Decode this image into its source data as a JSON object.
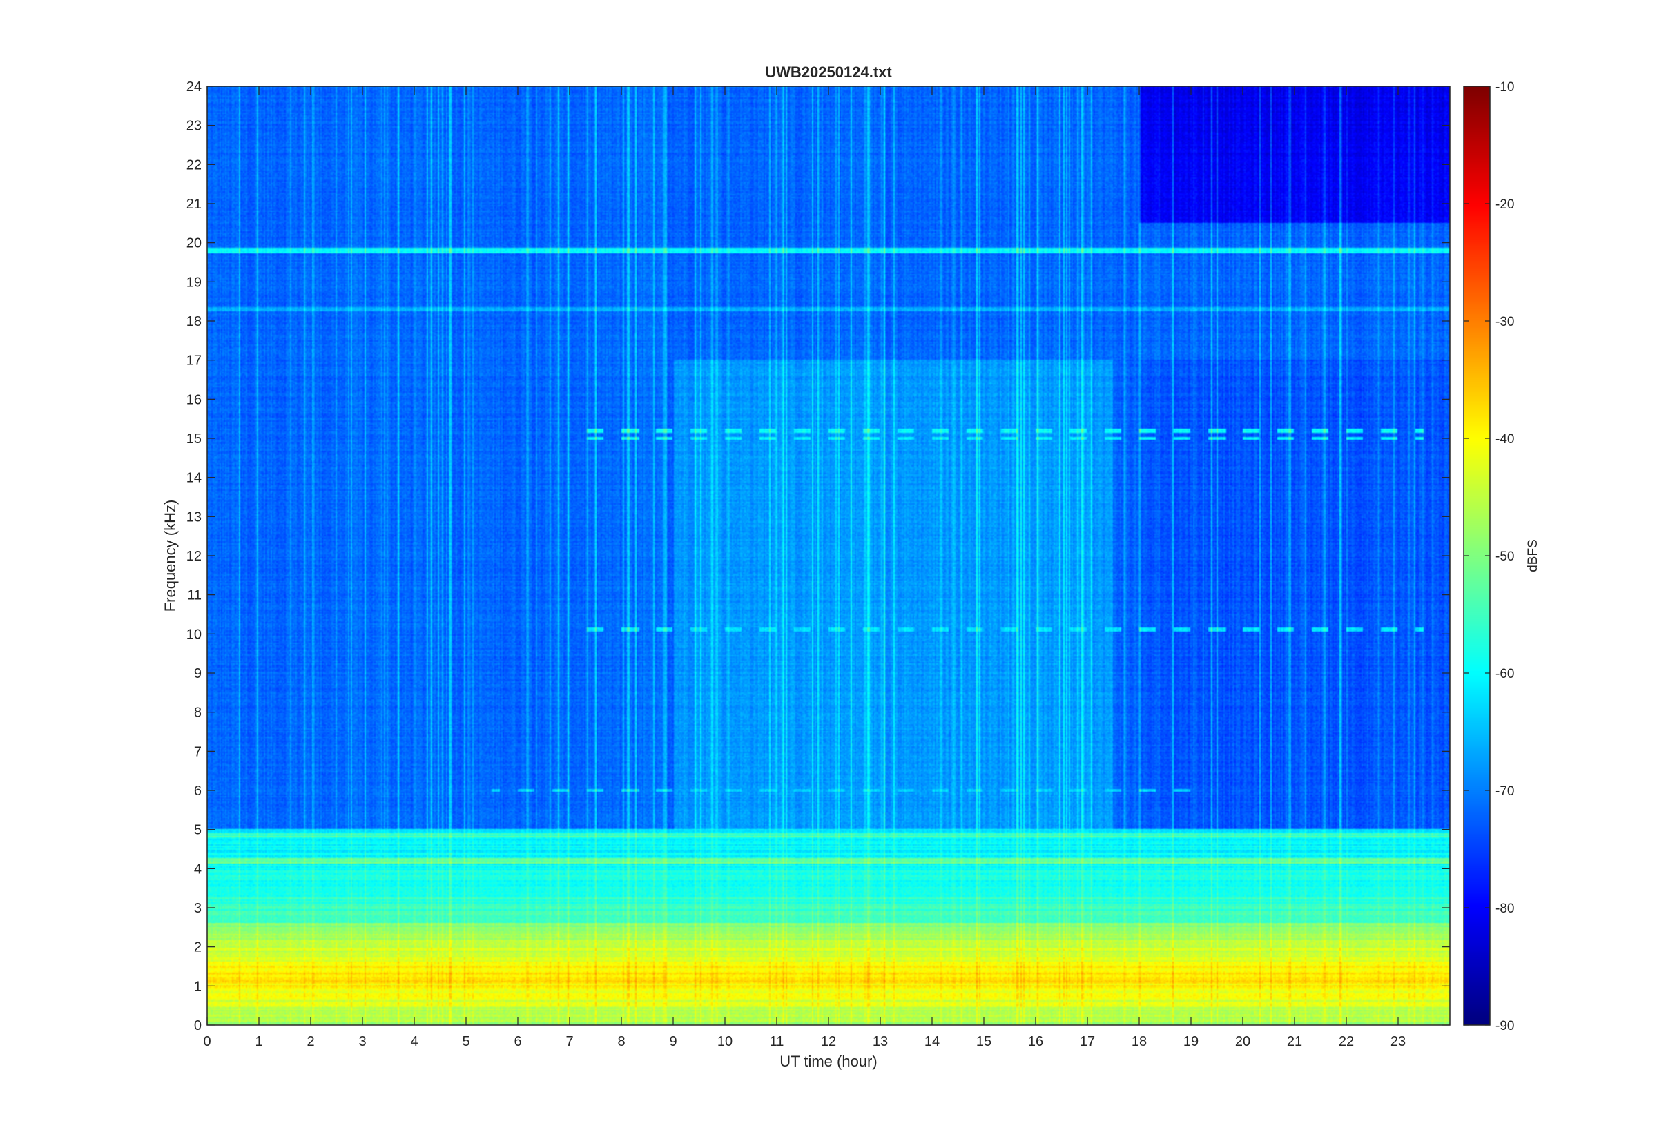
{
  "chart_data": {
    "type": "heatmap",
    "title": "UWB20250124.txt",
    "xlabel": "UT time (hour)",
    "ylabel": "Frequency (kHz)",
    "xlim": [
      0,
      24
    ],
    "ylim": [
      0,
      24
    ],
    "x_ticks": [
      "0",
      "1",
      "2",
      "3",
      "4",
      "5",
      "6",
      "7",
      "8",
      "9",
      "10",
      "11",
      "12",
      "13",
      "14",
      "15",
      "16",
      "17",
      "18",
      "19",
      "20",
      "21",
      "22",
      "23"
    ],
    "y_ticks": [
      "0",
      "1",
      "2",
      "3",
      "4",
      "5",
      "6",
      "7",
      "8",
      "9",
      "10",
      "11",
      "12",
      "13",
      "14",
      "15",
      "16",
      "17",
      "18",
      "19",
      "20",
      "21",
      "22",
      "23",
      "24"
    ],
    "colorbar": {
      "label": "dBFS",
      "range": [
        -90,
        -10
      ],
      "ticks": [
        "-10",
        "-20",
        "-30",
        "-40",
        "-50",
        "-60",
        "-70",
        "-80",
        "-90"
      ],
      "colormap": "jet"
    },
    "grid": false,
    "features": {
      "background_level_dbfs": -72,
      "low_frequency_band": {
        "freq_khz": [
          0,
          2.6
        ],
        "level_dbfs": [
          -50,
          -38
        ]
      },
      "mid_band": {
        "freq_khz": [
          2.6,
          5
        ],
        "level_dbfs": [
          -62,
          -55
        ]
      },
      "continuous_lines": [
        {
          "freq_khz": 19.8,
          "level_dbfs": -60
        },
        {
          "freq_khz": 18.3,
          "level_dbfs": -66
        },
        {
          "freq_khz": 4.2,
          "level_dbfs": -52
        },
        {
          "freq_khz": 4.85,
          "level_dbfs": -55
        },
        {
          "freq_khz": 1.2,
          "level_dbfs": -40
        }
      ],
      "intermittent_lines": [
        {
          "freq_khz": 15.2,
          "time_h": [
            7,
            23.5
          ],
          "level_dbfs": -60
        },
        {
          "freq_khz": 15.0,
          "time_h": [
            7,
            23.5
          ],
          "level_dbfs": -60
        },
        {
          "freq_khz": 10.1,
          "time_h": [
            7,
            23.5
          ],
          "level_dbfs": -62
        },
        {
          "freq_khz": 6.0,
          "time_h": [
            5.5,
            19
          ],
          "level_dbfs": -64
        }
      ],
      "quiet_high_band": {
        "freq_khz": [
          20.5,
          24
        ],
        "time_h": [
          18,
          24
        ],
        "level_dbfs": -82
      }
    }
  }
}
